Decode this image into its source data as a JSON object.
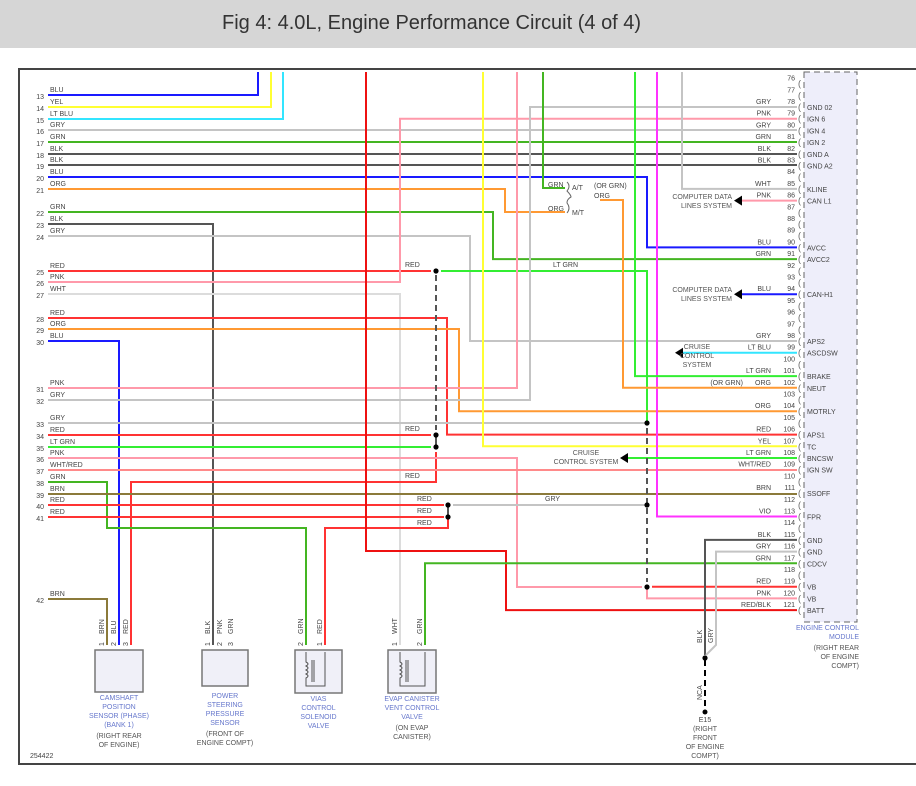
{
  "title": "Fig 4: 4.0L, Engine Performance Circuit (4 of 4)",
  "figure_id": "254422",
  "wire_colors": {
    "BLU": "#1a1aff",
    "YEL": "#ffff33",
    "LT BLU": "#33e5ff",
    "GRY": "#c4c4c4",
    "GRN": "#44b522",
    "BLK": "#555555",
    "ORG": "#ff9933",
    "RED": "#ff3333",
    "PNK": "#ff99aa",
    "WHT": "#dcdcdc",
    "LT GRN": "#33ee33",
    "BRN": "#8b7a3a",
    "VIO": "#ff33ff",
    "RED/BLK": "#ee1111",
    "WHT/RED": "#ff8a8a"
  },
  "left_pins": [
    {
      "num": "13",
      "color": "BLU"
    },
    {
      "num": "14",
      "color": "YEL"
    },
    {
      "num": "15",
      "color": "LT BLU"
    },
    {
      "num": "16",
      "color": "GRY"
    },
    {
      "num": "17",
      "color": "GRN"
    },
    {
      "num": "18",
      "color": "BLK"
    },
    {
      "num": "19",
      "color": "BLK"
    },
    {
      "num": "20",
      "color": "BLU"
    },
    {
      "num": "21",
      "color": "ORG"
    },
    {
      "num": "22",
      "color": "GRN"
    },
    {
      "num": "23",
      "color": "BLK"
    },
    {
      "num": "24",
      "color": "GRY"
    },
    {
      "num": "25",
      "color": "RED"
    },
    {
      "num": "26",
      "color": "PNK"
    },
    {
      "num": "27",
      "color": "WHT"
    },
    {
      "num": "28",
      "color": "RED"
    },
    {
      "num": "29",
      "color": "ORG"
    },
    {
      "num": "30",
      "color": "BLU"
    },
    {
      "num": "31",
      "color": "PNK"
    },
    {
      "num": "32",
      "color": "GRY"
    },
    {
      "num": "33",
      "color": "GRY"
    },
    {
      "num": "34",
      "color": "RED"
    },
    {
      "num": "35",
      "color": "LT GRN"
    },
    {
      "num": "36",
      "color": "PNK"
    },
    {
      "num": "37",
      "color": "WHT/RED"
    },
    {
      "num": "38",
      "color": "GRN"
    },
    {
      "num": "39",
      "color": "BRN"
    },
    {
      "num": "40",
      "color": "RED"
    },
    {
      "num": "41",
      "color": "RED"
    },
    {
      "num": "42",
      "color": "BRN"
    }
  ],
  "right_pins": [
    {
      "num": "76",
      "color": "",
      "name": ""
    },
    {
      "num": "77",
      "color": "",
      "name": ""
    },
    {
      "num": "78",
      "color": "GRY",
      "name": "GND 02"
    },
    {
      "num": "79",
      "color": "PNK",
      "name": "IGN 6"
    },
    {
      "num": "80",
      "color": "GRY",
      "name": "IGN 4"
    },
    {
      "num": "81",
      "color": "GRN",
      "name": "IGN 2"
    },
    {
      "num": "82",
      "color": "BLK",
      "name": "GND A"
    },
    {
      "num": "83",
      "color": "BLK",
      "name": "GND A2"
    },
    {
      "num": "84",
      "color": "",
      "name": ""
    },
    {
      "num": "85",
      "color": "WHT",
      "name": "KLINE"
    },
    {
      "num": "86",
      "color": "PNK",
      "name": "CAN L1"
    },
    {
      "num": "87",
      "color": "",
      "name": ""
    },
    {
      "num": "88",
      "color": "",
      "name": ""
    },
    {
      "num": "89",
      "color": "",
      "name": ""
    },
    {
      "num": "90",
      "color": "BLU",
      "name": "AVCC"
    },
    {
      "num": "91",
      "color": "GRN",
      "name": "AVCC2"
    },
    {
      "num": "92",
      "color": "",
      "name": ""
    },
    {
      "num": "93",
      "color": "",
      "name": ""
    },
    {
      "num": "94",
      "color": "BLU",
      "name": "CAN-H1"
    },
    {
      "num": "95",
      "color": "",
      "name": ""
    },
    {
      "num": "96",
      "color": "",
      "name": ""
    },
    {
      "num": "97",
      "color": "",
      "name": ""
    },
    {
      "num": "98",
      "color": "GRY",
      "name": "APS2"
    },
    {
      "num": "99",
      "color": "LT BLU",
      "name": "ASCDSW"
    },
    {
      "num": "100",
      "color": "",
      "name": ""
    },
    {
      "num": "101",
      "color": "LT GRN",
      "name": "BRAKE"
    },
    {
      "num": "102",
      "color": "ORG",
      "name": "NEUT"
    },
    {
      "num": "103",
      "color": "",
      "name": ""
    },
    {
      "num": "104",
      "color": "ORG",
      "name": "MOTRLY"
    },
    {
      "num": "105",
      "color": "",
      "name": ""
    },
    {
      "num": "106",
      "color": "RED",
      "name": "APS1"
    },
    {
      "num": "107",
      "color": "YEL",
      "name": "TC"
    },
    {
      "num": "108",
      "color": "LT GRN",
      "name": "BNCSW"
    },
    {
      "num": "109",
      "color": "WHT/RED",
      "name": "IGN SW"
    },
    {
      "num": "110",
      "color": "",
      "name": ""
    },
    {
      "num": "111",
      "color": "BRN",
      "name": "SSOFF"
    },
    {
      "num": "112",
      "color": "",
      "name": ""
    },
    {
      "num": "113",
      "color": "VIO",
      "name": "FPR"
    },
    {
      "num": "114",
      "color": "",
      "name": ""
    },
    {
      "num": "115",
      "color": "BLK",
      "name": "GND"
    },
    {
      "num": "116",
      "color": "GRY",
      "name": "GND"
    },
    {
      "num": "117",
      "color": "GRN",
      "name": "CDCV"
    },
    {
      "num": "118",
      "color": "",
      "name": ""
    },
    {
      "num": "119",
      "color": "RED",
      "name": "VB"
    },
    {
      "num": "120",
      "color": "PNK",
      "name": "VB"
    },
    {
      "num": "121",
      "color": "RED/BLK",
      "name": "BATT"
    }
  ],
  "inline_labels": {
    "splice_red_25": "RED",
    "splice_ltgrn_25": "LT GRN",
    "splice_red_34": "RED",
    "splice_red_38": "RED",
    "splice_red_40": "RED",
    "splice_red_41": "RED",
    "splice_red_vias": "RED",
    "splice_gry_40": "GRY",
    "at_grn": "GRN",
    "at": "A/T",
    "or_grn": "(OR GRN)",
    "org_102": "ORG",
    "mt_org": "ORG",
    "mt": "M/T",
    "or_grn_102": "(OR GRN)"
  },
  "references": {
    "data_lines_1": [
      "COMPUTER DATA",
      "LINES SYSTEM"
    ],
    "data_lines_2": [
      "COMPUTER DATA",
      "LINES SYSTEM"
    ],
    "cruise_1": [
      "CRUISE",
      "CONTROL",
      "SYSTEM"
    ],
    "cruise_2": [
      "CRUISE",
      "CONTROL SYSTEM"
    ]
  },
  "ecm": {
    "name": [
      "ENGINE CONTROL",
      "MODULE"
    ],
    "location": [
      "(RIGHT REAR",
      "OF ENGINE",
      "COMPT)"
    ]
  },
  "components": [
    {
      "id": "cmp",
      "name": [
        "CAMSHAFT",
        "POSITION",
        "SENSOR (PHASE)",
        "(BANK 1)"
      ],
      "location": [
        "(RIGHT REAR",
        "OF ENGINE)"
      ],
      "pins": [
        {
          "num": "1",
          "color": "BRN"
        },
        {
          "num": "2",
          "color": "BLU"
        },
        {
          "num": "3",
          "color": "RED"
        }
      ]
    },
    {
      "id": "psp",
      "name": [
        "POWER",
        "STEERING",
        "PRESSURE",
        "SENSOR"
      ],
      "location": [
        "(FRONT OF",
        "ENGINE COMPT)"
      ],
      "pins": [
        {
          "num": "1",
          "color": "BLK"
        },
        {
          "num": "2",
          "color": "PNK"
        },
        {
          "num": "3",
          "color": "GRN"
        }
      ]
    },
    {
      "id": "vias",
      "name": [
        "VIAS",
        "CONTROL",
        "SOLENOID",
        "VALVE"
      ],
      "location": [],
      "pins": [
        {
          "num": "2",
          "color": "GRN"
        },
        {
          "num": "1",
          "color": "RED"
        }
      ]
    },
    {
      "id": "evap",
      "name": [
        "EVAP CANISTER",
        "VENT CONTROL",
        "VALVE"
      ],
      "location": [
        "(ON EVAP",
        "CANISTER)"
      ],
      "pins": [
        {
          "num": "1",
          "color": "WHT"
        },
        {
          "num": "2",
          "color": "GRN"
        }
      ]
    }
  ],
  "ground": {
    "id": "E15",
    "wires": [
      {
        "color": "BLK"
      },
      {
        "color": "GRY"
      }
    ],
    "nca": "NCA",
    "location": [
      "(RIGHT",
      "FRONT",
      "OF ENGINE",
      "COMPT)"
    ]
  }
}
